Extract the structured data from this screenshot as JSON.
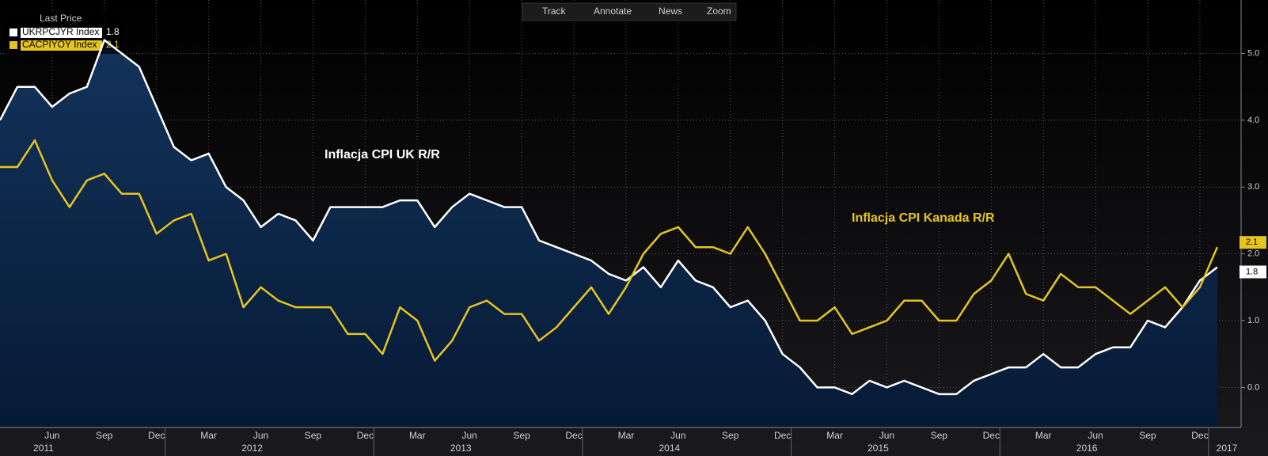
{
  "chart_data": {
    "type": "line",
    "legend_title": "Last Price",
    "annotations": [
      "Inflacja CPI UK R/R",
      "Inflacja CPI Kanada R/R"
    ],
    "toolbar": [
      "Track",
      "Annotate",
      "News",
      "Zoom"
    ],
    "categories": [
      null,
      null,
      null,
      "Jun",
      null,
      null,
      "Sep",
      null,
      null,
      "Dec",
      null,
      null,
      "Mar",
      null,
      null,
      "Jun",
      null,
      null,
      "Sep",
      null,
      null,
      "Dec",
      null,
      null,
      "Mar",
      null,
      null,
      "Jun",
      null,
      null,
      "Sep",
      null,
      null,
      "Dec",
      null,
      null,
      "Mar",
      null,
      null,
      "Jun",
      null,
      null,
      "Sep",
      null,
      null,
      "Dec",
      null,
      null,
      "Mar",
      null,
      null,
      "Jun",
      null,
      null,
      "Sep",
      null,
      null,
      "Dec",
      null,
      null,
      "Mar",
      null,
      null,
      "Jun",
      null,
      null,
      "Sep",
      null,
      null,
      "Dec",
      null
    ],
    "years": [
      "2011",
      "2012",
      "2013",
      "2014",
      "2015",
      "2016",
      "2017"
    ],
    "series": [
      {
        "name": "UKRPCJYR Index",
        "color": "#ffffff",
        "fill": true,
        "values": [
          4.0,
          4.5,
          4.5,
          4.2,
          4.4,
          4.5,
          5.2,
          5.0,
          4.8,
          4.2,
          3.6,
          3.4,
          3.5,
          3.0,
          2.8,
          2.4,
          2.6,
          2.5,
          2.2,
          2.7,
          2.7,
          2.7,
          2.7,
          2.8,
          2.8,
          2.4,
          2.7,
          2.9,
          2.8,
          2.7,
          2.7,
          2.2,
          2.1,
          2.0,
          1.9,
          1.7,
          1.6,
          1.8,
          1.5,
          1.9,
          1.6,
          1.5,
          1.2,
          1.3,
          1.0,
          0.5,
          0.3,
          0.0,
          0.0,
          -0.1,
          0.1,
          0.0,
          0.1,
          0.0,
          -0.1,
          -0.1,
          0.1,
          0.2,
          0.3,
          0.3,
          0.5,
          0.3,
          0.3,
          0.5,
          0.6,
          0.6,
          1.0,
          0.9,
          1.2,
          1.6,
          1.8
        ]
      },
      {
        "name": "CACPIYOY Index",
        "color": "#e8c51c",
        "fill": false,
        "values": [
          3.3,
          3.3,
          3.7,
          3.1,
          2.7,
          3.1,
          3.2,
          2.9,
          2.9,
          2.3,
          2.5,
          2.6,
          1.9,
          2.0,
          1.2,
          1.5,
          1.3,
          1.2,
          1.2,
          1.2,
          0.8,
          0.8,
          0.5,
          1.2,
          1.0,
          0.4,
          0.7,
          1.2,
          1.3,
          1.1,
          1.1,
          0.7,
          0.9,
          1.2,
          1.5,
          1.1,
          1.5,
          2.0,
          2.3,
          2.4,
          2.1,
          2.1,
          2.0,
          2.4,
          2.0,
          1.5,
          1.0,
          1.0,
          1.2,
          0.8,
          0.9,
          1.0,
          1.3,
          1.3,
          1.0,
          1.0,
          1.4,
          1.6,
          2.0,
          1.4,
          1.3,
          1.7,
          1.5,
          1.5,
          1.3,
          1.1,
          1.3,
          1.5,
          1.2,
          1.5,
          2.1
        ]
      }
    ],
    "ylim": [
      -0.6,
      5.8
    ],
    "yticks": [
      {
        "value": 0,
        "label": "0.0"
      },
      {
        "value": 1,
        "label": "1.0"
      },
      {
        "value": 2,
        "label": "2.0"
      },
      {
        "value": 3,
        "label": "3.0"
      },
      {
        "value": 4,
        "label": "4.0"
      },
      {
        "value": 5,
        "label": "5.0"
      }
    ],
    "grid": true
  }
}
